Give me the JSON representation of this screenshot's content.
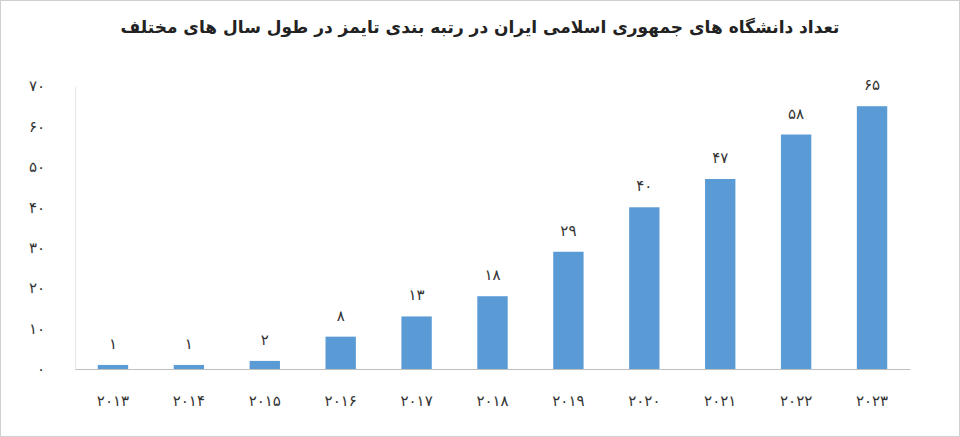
{
  "chart_data": {
    "type": "bar",
    "title": "تعداد دانشگاه های جمهوری اسلامی ایران در رتبه بندی تایمز در طول سال های مختلف",
    "categories": [
      "۲۰۱۳",
      "۲۰۱۴",
      "۲۰۱۵",
      "۲۰۱۶",
      "۲۰۱۷",
      "۲۰۱۸",
      "۲۰۱۹",
      "۲۰۲۰",
      "۲۰۲۱",
      "۲۰۲۲",
      "۲۰۲۳"
    ],
    "values": [
      1,
      1,
      2,
      8,
      13,
      18,
      29,
      40,
      47,
      58,
      65
    ],
    "value_labels": [
      "۱",
      "۱",
      "۲",
      "۸",
      "۱۳",
      "۱۸",
      "۲۹",
      "۴۰",
      "۴۷",
      "۵۸",
      "۶۵"
    ],
    "color": "#5b9bd5",
    "ylim": [
      0,
      70
    ],
    "yticks": [
      {
        "value": 0,
        "label": "۰"
      },
      {
        "value": 10,
        "label": "۱۰"
      },
      {
        "value": 20,
        "label": "۲۰"
      },
      {
        "value": 30,
        "label": "۳۰"
      },
      {
        "value": 40,
        "label": "۴۰"
      },
      {
        "value": 50,
        "label": "۵۰"
      },
      {
        "value": 60,
        "label": "۶۰"
      },
      {
        "value": 70,
        "label": "۷۰"
      }
    ],
    "grid": false,
    "data_labels": true
  }
}
